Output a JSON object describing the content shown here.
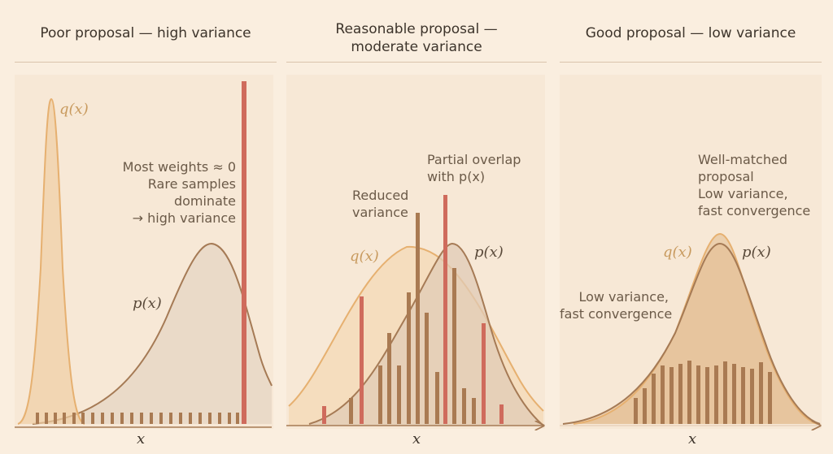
{
  "panels": [
    {
      "title": "Poor proposal — high variance",
      "q_label": "q(x)",
      "p_label": "p(x)",
      "annotation": [
        "Most weights ≈ 0",
        "Rare samples",
        "dominate",
        "→ high variance"
      ],
      "x_label": "x"
    },
    {
      "title_line1": "Reasonable proposal —",
      "title_line2": "moderate variance",
      "q_label": "q(x)",
      "p_label": "p(x)",
      "annotation_left": [
        "Reduced",
        "variance"
      ],
      "annotation_top_line1": "Partial overlap",
      "annotation_top_line2": "with p(x)",
      "x_label": "x"
    },
    {
      "title": "Good proposal — low variance",
      "q_label": "q(x)",
      "p_label": "p(x)",
      "annotation_top": [
        "Well-matched",
        "proposal",
        "Low variance,",
        "fast convergence"
      ],
      "annotation_left": [
        "Low variance,",
        "fast convergence"
      ],
      "x_label": "x"
    }
  ],
  "colors": {
    "background": "#faeedf",
    "p_curve": "#a57a55",
    "q_curve": "#e6b070",
    "weight_bar": "#a97a52",
    "outlier_bar": "#cf6b5c"
  }
}
